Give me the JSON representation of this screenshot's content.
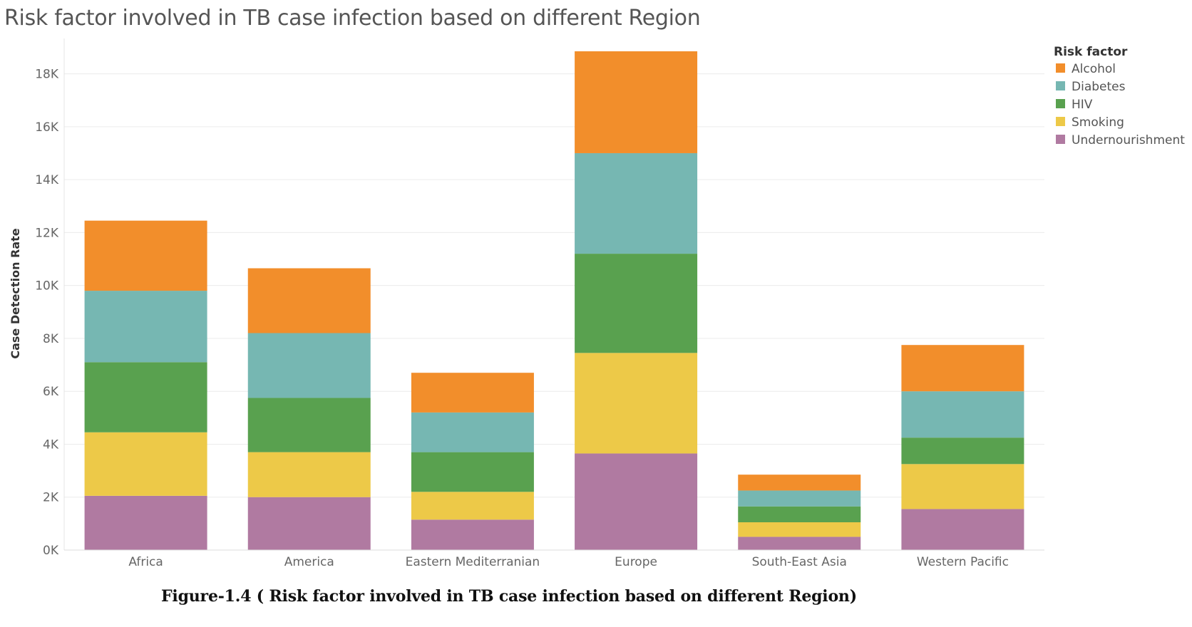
{
  "chart_data": {
    "type": "bar",
    "stacked": true,
    "title": "Risk factor involved in TB case infection based on different Region",
    "caption": "Figure-1.4 ( Risk factor involved in TB case infection based on different Region)",
    "xlabel": "",
    "ylabel": "Case Detection Rate",
    "ylim": [
      0,
      19200
    ],
    "yticks": [
      0,
      2000,
      4000,
      6000,
      8000,
      10000,
      12000,
      14000,
      16000,
      18000
    ],
    "ytick_labels": [
      "0K",
      "2K",
      "4K",
      "6K",
      "8K",
      "10K",
      "12K",
      "14K",
      "16K",
      "18K"
    ],
    "grid": true,
    "legend_title": "Risk factor",
    "legend_position": "top-right",
    "categories": [
      "Africa",
      "America",
      "Eastern Mediterranian",
      "Europe",
      "South-East Asia",
      "Western Pacific"
    ],
    "series": [
      {
        "name": "Undernourishment",
        "color": "#B07AA1",
        "values": [
          2050,
          2000,
          1150,
          3650,
          500,
          1550
        ]
      },
      {
        "name": "Smoking",
        "color": "#EDC948",
        "values": [
          2400,
          1700,
          1050,
          3800,
          550,
          1700
        ]
      },
      {
        "name": "HIV",
        "color": "#59A14F",
        "values": [
          2650,
          2050,
          1500,
          3750,
          600,
          1000
        ]
      },
      {
        "name": "Diabetes",
        "color": "#76B7B2",
        "values": [
          2700,
          2450,
          1500,
          3800,
          600,
          1750
        ]
      },
      {
        "name": "Alcohol",
        "color": "#F28E2B",
        "values": [
          2650,
          2450,
          1500,
          3850,
          600,
          1750
        ]
      }
    ],
    "legend_order": [
      "Alcohol",
      "Diabetes",
      "HIV",
      "Smoking",
      "Undernourishment"
    ]
  }
}
